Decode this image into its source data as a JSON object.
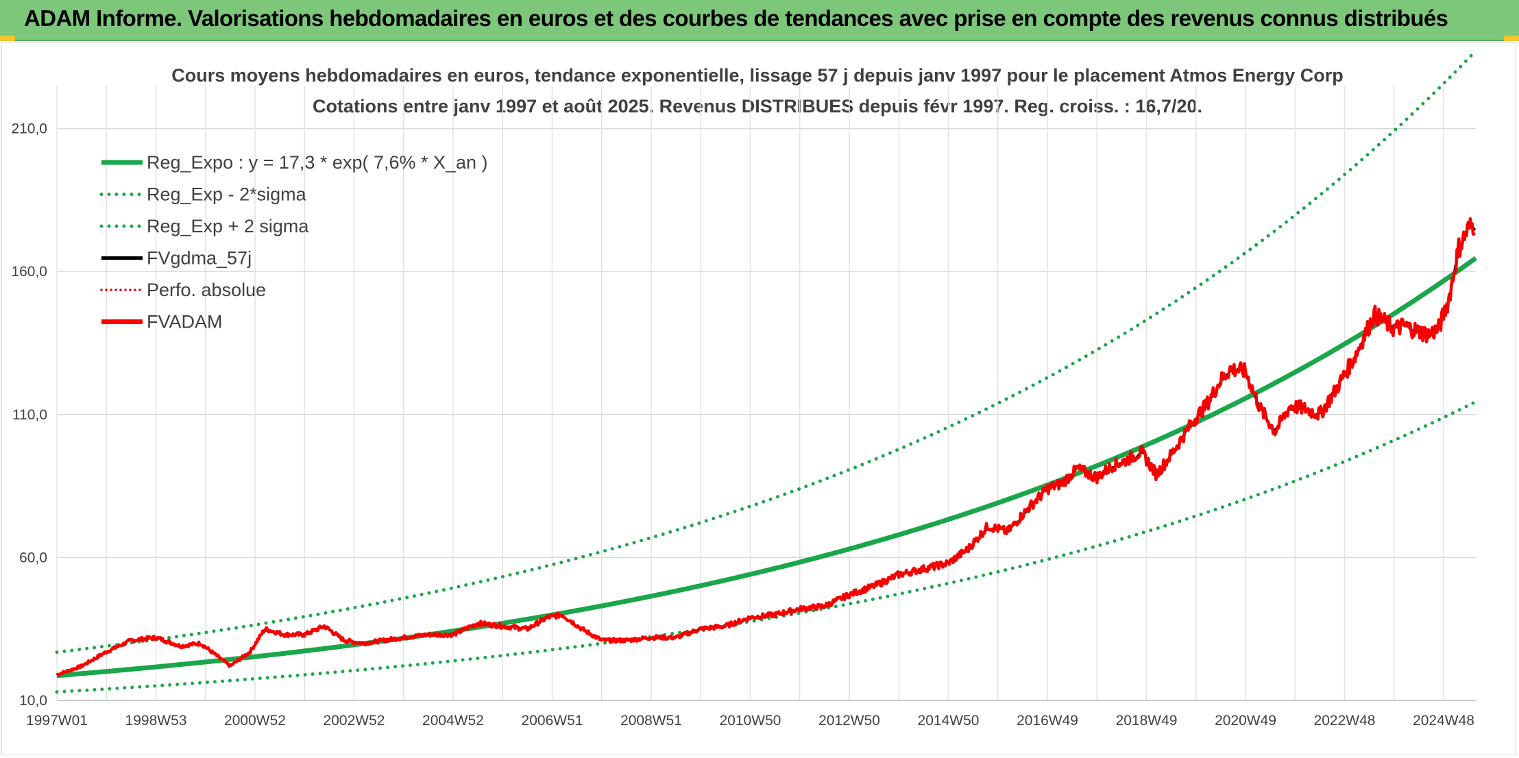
{
  "banner": {
    "title": "ADAM Informe. Valorisations hebdomadaires en euros et des courbes de tendances avec prise en compte des revenus connus distribués"
  },
  "chart_data": {
    "type": "line",
    "title": "Cours moyens hebdomadaires en euros, tendance exponentielle, lissage 57 j depuis janv 1997 pour le placement Atmos Energy Corp",
    "subtitle": "Cotations entre janv 1997 et août 2025. Revenus DISTRIBUES depuis févr 1997. Reg. croiss. : 16,7/20.",
    "xlabel": "",
    "ylabel": "",
    "ylim": [
      10,
      225
    ],
    "yticks": [
      "10,0",
      "60,0",
      "110,0",
      "160,0",
      "210,0"
    ],
    "ytick_values": [
      10,
      60,
      110,
      160,
      210
    ],
    "xticks": [
      "1997W01",
      "1998W53",
      "2000W52",
      "2002W52",
      "2004W52",
      "2006W51",
      "2008W51",
      "2010W50",
      "2012W50",
      "2014W50",
      "2016W49",
      "2018W49",
      "2020W49",
      "2022W48",
      "2024W48"
    ],
    "xtick_years": [
      1997.0,
      1999.0,
      2001.0,
      2003.0,
      2005.0,
      2007.0,
      2009.0,
      2011.0,
      2013.0,
      2015.0,
      2017.0,
      2019.0,
      2021.0,
      2023.0,
      2025.0
    ],
    "x_range_years": [
      1997.0,
      2025.65
    ],
    "grid": true,
    "legend_position": "top-left",
    "regression": {
      "a": 17.3,
      "b": 0.076,
      "x0": 1997.0,
      "sigma_up_factor": 1.44,
      "sigma_down_factor": 0.695
    },
    "series": [
      {
        "name": "Reg_Expo : y = 17,3 * exp( 7,6% *  X_an )",
        "style": "solid-thick",
        "color": "#1aa64a"
      },
      {
        "name": "Reg_Exp - 2*sigma",
        "style": "dotted",
        "color": "#1aa64a"
      },
      {
        "name": "Reg_Exp + 2 sigma",
        "style": "dotted",
        "color": "#1aa64a"
      },
      {
        "name": "FVgdma_57j",
        "style": "solid",
        "color": "#000000"
      },
      {
        "name": "Perfo. absolue",
        "style": "dotted-thin",
        "color": "#e00000"
      },
      {
        "name": "FVADAM",
        "style": "solid-thick",
        "color": "#ff0000",
        "x": [
          1997.0,
          1997.5,
          1998.0,
          1998.5,
          1999.0,
          1999.5,
          1999.9,
          2000.2,
          2000.5,
          2000.9,
          2001.2,
          2001.6,
          2002.0,
          2002.4,
          2002.8,
          2003.2,
          2003.6,
          2004.0,
          2004.5,
          2005.0,
          2005.5,
          2006.0,
          2006.5,
          2006.9,
          2007.2,
          2007.6,
          2008.0,
          2008.5,
          2009.0,
          2009.5,
          2010.0,
          2010.5,
          2011.0,
          2011.5,
          2012.0,
          2012.5,
          2013.0,
          2013.5,
          2014.0,
          2014.5,
          2015.0,
          2015.4,
          2015.8,
          2016.2,
          2016.6,
          2017.0,
          2017.3,
          2017.6,
          2018.0,
          2018.3,
          2018.6,
          2018.9,
          2019.2,
          2019.5,
          2019.8,
          2020.0,
          2020.2,
          2020.5,
          2020.7,
          2021.0,
          2021.3,
          2021.6,
          2021.9,
          2022.2,
          2022.5,
          2022.8,
          2023.2,
          2023.6,
          2024.0,
          2024.2,
          2024.5,
          2024.7,
          2024.9,
          2025.1,
          2025.3,
          2025.5,
          2025.65
        ],
        "values": [
          19,
          22,
          27,
          31,
          32,
          29,
          30,
          26,
          22,
          27,
          35,
          33,
          33,
          36,
          31,
          30,
          31,
          32,
          33,
          33,
          37,
          36,
          35,
          39,
          40,
          35,
          31,
          31,
          32,
          32,
          35,
          36,
          39,
          40,
          42,
          43,
          47,
          50,
          54,
          56,
          58,
          63,
          71,
          69,
          77,
          84,
          86,
          91,
          88,
          92,
          94,
          97,
          89,
          96,
          104,
          109,
          113,
          122,
          126,
          125,
          112,
          104,
          113,
          112,
          110,
          118,
          130,
          145,
          140,
          141,
          139,
          138,
          140,
          150,
          168,
          175,
          177
        ]
      }
    ]
  }
}
